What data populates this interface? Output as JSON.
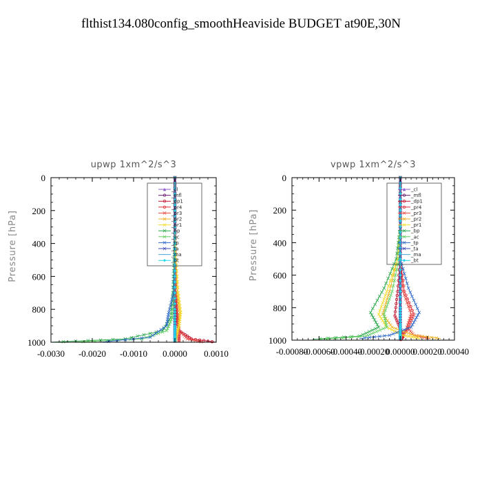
{
  "figure_title": "flthist134.080config_smoothHeaviside  BUDGET at90E,30N",
  "chart_data": [
    {
      "type": "line",
      "title": "upwp   1xm^2/s^3",
      "ylabel": "Pressure  [hPa]",
      "xlabel": "",
      "xlim": [
        -0.003,
        0.001
      ],
      "ylim": [
        1000,
        0
      ],
      "xticks": [
        "-0.0030",
        "-0.0020",
        "-0.0010",
        "0.0000",
        "0.0010"
      ],
      "xtick_values": [
        -0.003,
        -0.002,
        -0.001,
        0.0,
        0.001
      ],
      "yticks": [
        "0",
        "200",
        "400",
        "600",
        "800",
        "1000"
      ],
      "ytick_values": [
        0,
        200,
        400,
        600,
        800,
        1000
      ],
      "legend_position": "top-right",
      "series": [
        {
          "name": "_cl",
          "color": "#8e5cc9",
          "marker": "triangle",
          "x": [
            0.0,
            0.0,
            0.0,
            0.0,
            0.0,
            0.0,
            0.0,
            0.0
          ],
          "y": [
            0,
            200,
            400,
            600,
            800,
            900,
            960,
            1000
          ]
        },
        {
          "name": "_mfl",
          "color": "#6a1b6e",
          "marker": "circle",
          "x": [
            0.0,
            0.0,
            0.0,
            0.0,
            0.0,
            0.0,
            0.0,
            0.0
          ],
          "y": [
            0,
            200,
            400,
            600,
            800,
            900,
            960,
            1000
          ]
        },
        {
          "name": "_dp1",
          "color": "#c0102a",
          "marker": "circle",
          "x": [
            0.0,
            0.0,
            0.0,
            2e-05,
            5e-05,
            0.0001,
            0.0004,
            0.001
          ],
          "y": [
            0,
            200,
            400,
            700,
            850,
            930,
            980,
            1000
          ]
        },
        {
          "name": "_pr4",
          "color": "#e0303a",
          "marker": "circle",
          "x": [
            0.0,
            0.0,
            1e-05,
            3e-05,
            6e-05,
            8e-05,
            0.0001,
            0.0001
          ],
          "y": [
            0,
            300,
            500,
            700,
            830,
            900,
            960,
            1000
          ]
        },
        {
          "name": "_pr3",
          "color": "#e5443c",
          "marker": "cross",
          "x": [
            0.0,
            0.0,
            0.0,
            2e-05,
            4e-05,
            0.0001,
            0.0003,
            0.0007
          ],
          "y": [
            0,
            300,
            500,
            700,
            850,
            930,
            980,
            1000
          ]
        },
        {
          "name": "_pr2",
          "color": "#f0b020",
          "marker": "cross",
          "x": [
            0.0,
            0.0,
            2e-05,
            6e-05,
            0.00012,
            0.0001,
            4e-05,
            0.0
          ],
          "y": [
            0,
            300,
            500,
            700,
            820,
            900,
            960,
            1000
          ]
        },
        {
          "name": "_pr1",
          "color": "#f5dc2a",
          "marker": "cross",
          "x": [
            0.0,
            0.0,
            3e-05,
            8e-05,
            0.00014,
            0.0001,
            3e-05,
            0.0
          ],
          "y": [
            0,
            300,
            500,
            700,
            820,
            900,
            960,
            1000
          ]
        },
        {
          "name": "_bp",
          "color": "#2aa64a",
          "marker": "cross",
          "x": [
            0.0,
            0.0,
            -2e-05,
            -5e-05,
            -0.0001,
            -0.0003,
            -0.0012,
            -0.003
          ],
          "y": [
            0,
            300,
            500,
            700,
            850,
            930,
            980,
            1000
          ]
        },
        {
          "name": "_ac",
          "color": "#60d060",
          "marker": "cross",
          "x": [
            0.0,
            0.0,
            -1e-05,
            -3e-05,
            -6e-05,
            -0.0002,
            -0.0008,
            -0.0025
          ],
          "y": [
            0,
            300,
            500,
            700,
            850,
            930,
            980,
            1000
          ]
        },
        {
          "name": "_tp",
          "color": "#2a66c8",
          "marker": "cross",
          "x": [
            0.0,
            0.0,
            0.0,
            -3e-05,
            -0.00015,
            -0.0002,
            -0.0006,
            -0.0018
          ],
          "y": [
            0,
            300,
            500,
            700,
            820,
            900,
            970,
            1000
          ]
        },
        {
          "name": "_ta",
          "color": "#3a46b8",
          "marker": "cross",
          "x": [
            0.0,
            0.0,
            0.0,
            0.0,
            0.0,
            0.0,
            0.0,
            0.0
          ],
          "y": [
            0,
            200,
            400,
            600,
            800,
            900,
            960,
            1000
          ]
        },
        {
          "name": "_ma",
          "color": "#45a8d8",
          "marker": "dash",
          "x": [
            0.0,
            0.0,
            0.0,
            0.0,
            0.0,
            0.0,
            0.0,
            0.0
          ],
          "y": [
            0,
            200,
            400,
            600,
            800,
            900,
            960,
            1000
          ]
        },
        {
          "name": "_bt",
          "color": "#22d8e8",
          "marker": "diamond",
          "x": [
            0.0,
            0.0,
            0.0,
            0.0,
            0.0,
            0.0,
            0.0,
            0.0
          ],
          "y": [
            0,
            200,
            400,
            600,
            800,
            900,
            960,
            1000
          ]
        }
      ]
    },
    {
      "type": "line",
      "title": "vpwp   1xm^2/s^3",
      "ylabel": "Pressure  [hPa]",
      "xlabel": "",
      "xlim": [
        -0.0008,
        0.0004
      ],
      "ylim": [
        1000,
        0
      ],
      "xticks": [
        "-0.00080",
        "-0.00060",
        "-0.00040",
        "-0.00020",
        "0.00000",
        "0.00020",
        "0.00040"
      ],
      "xtick_values": [
        -0.0008,
        -0.0006,
        -0.0004,
        -0.0002,
        0.0,
        0.0002,
        0.0004
      ],
      "yticks": [
        "0",
        "200",
        "400",
        "600",
        "800",
        "1000"
      ],
      "ytick_values": [
        0,
        200,
        400,
        600,
        800,
        1000
      ],
      "legend_position": "top-right",
      "series": [
        {
          "name": "_cl",
          "color": "#8e5cc9",
          "marker": "triangle",
          "x": [
            0.0,
            0.0,
            0.0,
            0.0,
            0.0,
            0.0,
            0.0,
            0.0
          ],
          "y": [
            0,
            200,
            400,
            600,
            800,
            900,
            960,
            1000
          ]
        },
        {
          "name": "_mfl",
          "color": "#6a1b6e",
          "marker": "circle",
          "x": [
            0.0,
            0.0,
            0.0,
            0.0,
            0.0,
            0.0,
            0.0,
            0.0
          ],
          "y": [
            0,
            200,
            400,
            600,
            800,
            900,
            960,
            1000
          ]
        },
        {
          "name": "_dp1",
          "color": "#c0102a",
          "marker": "circle",
          "x": [
            0.0,
            0.0,
            0.0,
            -2e-05,
            -4e-05,
            0.0,
            2e-05,
            0.0
          ],
          "y": [
            0,
            300,
            500,
            700,
            850,
            930,
            980,
            1000
          ]
        },
        {
          "name": "_pr4",
          "color": "#e0303a",
          "marker": "circle",
          "x": [
            0.0,
            0.0,
            0.0,
            3e-05,
            0.0001,
            6e-05,
            2e-05,
            0.0
          ],
          "y": [
            0,
            300,
            500,
            700,
            840,
            920,
            970,
            1000
          ]
        },
        {
          "name": "_pr3",
          "color": "#e5443c",
          "marker": "cross",
          "x": [
            0.0,
            0.0,
            0.0,
            2e-05,
            8e-05,
            5e-05,
            0.0001,
            0.00022
          ],
          "y": [
            0,
            300,
            500,
            700,
            840,
            920,
            970,
            990
          ]
        },
        {
          "name": "_pr2",
          "color": "#f0b020",
          "marker": "cross",
          "x": [
            0.0,
            0.0,
            -2e-05,
            -8e-05,
            -0.00013,
            -6e-05,
            0.0001,
            0.0003
          ],
          "y": [
            0,
            300,
            500,
            700,
            840,
            920,
            970,
            990
          ]
        },
        {
          "name": "_pr1",
          "color": "#f5dc2a",
          "marker": "cross",
          "x": [
            0.0,
            0.0,
            -2e-05,
            -0.0001,
            -0.00016,
            -0.0001,
            2e-05,
            0.00015
          ],
          "y": [
            0,
            300,
            500,
            700,
            840,
            920,
            970,
            990
          ]
        },
        {
          "name": "_bp",
          "color": "#2aa64a",
          "marker": "cross",
          "x": [
            0.0,
            0.0,
            -3e-05,
            -0.00012,
            -0.00022,
            -0.00016,
            -0.0003,
            -0.00065
          ],
          "y": [
            0,
            300,
            500,
            680,
            830,
            920,
            975,
            995
          ]
        },
        {
          "name": "_ac",
          "color": "#60d060",
          "marker": "cross",
          "x": [
            0.0,
            0.0,
            -1e-05,
            -6e-05,
            -0.00012,
            -0.0001,
            -0.00025,
            -0.0006
          ],
          "y": [
            0,
            300,
            500,
            700,
            840,
            920,
            975,
            995
          ]
        },
        {
          "name": "_tp",
          "color": "#2a66c8",
          "marker": "cross",
          "x": [
            0.0,
            0.0,
            0.0,
            6e-05,
            0.00014,
            8e-05,
            -8e-05,
            -0.0003
          ],
          "y": [
            0,
            300,
            500,
            680,
            830,
            920,
            970,
            990
          ]
        },
        {
          "name": "_ta",
          "color": "#3a46b8",
          "marker": "cross",
          "x": [
            0.0,
            0.0,
            0.0,
            0.0,
            0.0,
            0.0,
            0.0,
            0.0
          ],
          "y": [
            0,
            200,
            400,
            600,
            800,
            900,
            960,
            1000
          ]
        },
        {
          "name": "_ma",
          "color": "#45a8d8",
          "marker": "dash",
          "x": [
            0.0,
            0.0,
            0.0,
            0.0,
            0.0,
            0.0,
            0.0,
            0.0
          ],
          "y": [
            0,
            200,
            400,
            600,
            800,
            900,
            960,
            1000
          ]
        },
        {
          "name": "_bt",
          "color": "#22d8e8",
          "marker": "diamond",
          "x": [
            0.0,
            0.0,
            0.0,
            0.0,
            0.0,
            0.0,
            0.0,
            0.0
          ],
          "y": [
            0,
            200,
            400,
            600,
            800,
            900,
            960,
            1000
          ]
        }
      ]
    }
  ]
}
